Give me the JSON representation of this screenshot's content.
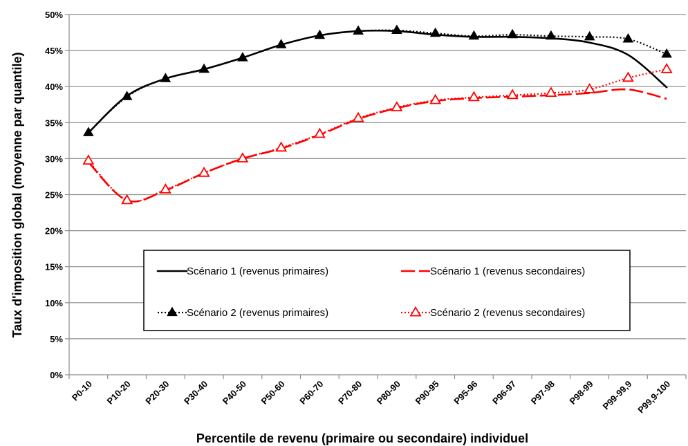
{
  "chart_data": {
    "type": "line",
    "title": "",
    "xlabel": "Percentile de revenu (primaire ou secondaire) individuel",
    "ylabel": "Taux d'imposition global (moyenne par quantile)",
    "categories": [
      "P0-10",
      "P10-20",
      "P20-30",
      "P30-40",
      "P40-50",
      "P50-60",
      "P60-70",
      "P70-80",
      "P80-90",
      "P90-95",
      "P95-96",
      "P96-97",
      "P97-98",
      "P98-99",
      "P99-99,9",
      "P99,9-100"
    ],
    "ylim": [
      0,
      50
    ],
    "yticks": [
      "0%",
      "5%",
      "10%",
      "15%",
      "20%",
      "25%",
      "30%",
      "35%",
      "40%",
      "45%",
      "50%"
    ],
    "grid": true,
    "legend_position": "center",
    "series": [
      {
        "name": "Scénario 1 (revenus primaires)",
        "values": [
          33.6,
          38.7,
          41.1,
          42.4,
          44.0,
          45.8,
          47.1,
          47.7,
          47.7,
          47.2,
          46.9,
          46.9,
          46.7,
          46.1,
          44.4,
          39.9
        ],
        "color": "#000000",
        "dash": "solid",
        "marker": "none"
      },
      {
        "name": "Scénario 1 (revenus secondaires)",
        "values": [
          29.5,
          24.2,
          25.6,
          28.0,
          30.0,
          31.4,
          33.3,
          35.5,
          37.0,
          38.0,
          38.4,
          38.6,
          38.8,
          39.1,
          39.6,
          38.3
        ],
        "color": "#ff0000",
        "dash": "long-dash",
        "marker": "none"
      },
      {
        "name": "Scénario 2 (revenus primaires)",
        "values": [
          33.6,
          38.6,
          41.1,
          42.4,
          44.0,
          45.8,
          47.1,
          47.7,
          47.8,
          47.4,
          47.0,
          47.2,
          47.0,
          46.9,
          46.6,
          44.5
        ],
        "color": "#000000",
        "dash": "dotted",
        "marker": "filled-triangle"
      },
      {
        "name": "Scénario 2 (revenus secondaires)",
        "values": [
          29.7,
          24.2,
          25.7,
          28.0,
          30.0,
          31.5,
          33.4,
          35.6,
          37.1,
          38.1,
          38.5,
          38.8,
          39.1,
          39.6,
          41.2,
          42.4
        ],
        "color": "#ff0000",
        "dash": "dotted",
        "marker": "open-triangle"
      }
    ]
  }
}
